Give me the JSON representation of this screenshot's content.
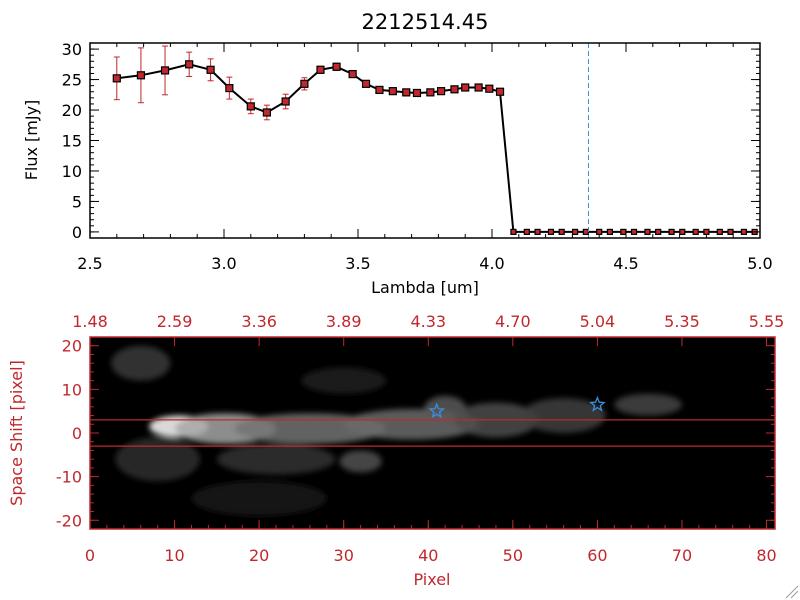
{
  "chart_data": [
    {
      "type": "line",
      "title": "2212514.45",
      "xlabel": "Lambda [um]",
      "ylabel": "Flux [mJy]",
      "xlim": [
        2.5,
        5.0
      ],
      "ylim": [
        -1,
        31
      ],
      "x_ticks": [
        "2.5",
        "3.0",
        "3.5",
        "4.0",
        "4.5",
        "5.0"
      ],
      "y_ticks": [
        "0",
        "5",
        "10",
        "15",
        "20",
        "25",
        "30"
      ],
      "vline_x": 4.36,
      "series": [
        {
          "x": [
            2.6,
            2.69,
            2.78,
            2.87,
            2.95,
            3.02,
            3.1,
            3.16,
            3.23,
            3.3,
            3.36,
            3.42,
            3.48,
            3.53,
            3.58,
            3.63,
            3.68,
            3.72,
            3.77,
            3.81,
            3.86,
            3.9,
            3.95,
            3.99,
            4.03
          ],
          "y": [
            25.2,
            25.7,
            26.5,
            27.5,
            26.6,
            23.6,
            20.6,
            19.6,
            21.4,
            24.3,
            26.6,
            27.1,
            25.9,
            24.3,
            23.3,
            23.1,
            22.9,
            22.8,
            22.9,
            23.1,
            23.4,
            23.7,
            23.7,
            23.5,
            23.0
          ],
          "yerr": [
            3.5,
            4.5,
            4.0,
            2.0,
            1.8,
            1.8,
            1.2,
            1.2,
            1.2,
            1.0,
            0.6,
            0.6,
            0.5,
            0.5,
            0.4,
            0.3,
            0.3,
            0.3,
            0.3,
            0.3,
            0.3,
            0.3,
            0.3,
            0.3,
            0.3
          ]
        },
        {
          "x": [
            4.08,
            4.13,
            4.17,
            4.22,
            4.26,
            4.31,
            4.35,
            4.4,
            4.44,
            4.49,
            4.53,
            4.58,
            4.62,
            4.67,
            4.71,
            4.76,
            4.8,
            4.85,
            4.89,
            4.94,
            4.98
          ],
          "y": [
            0,
            0,
            0,
            0,
            0,
            0,
            0,
            0,
            0,
            0,
            0,
            0,
            0,
            0,
            0,
            0,
            0,
            0,
            0,
            0,
            0
          ]
        }
      ]
    },
    {
      "type": "heatmap",
      "xlabel": "Pixel",
      "ylabel": "Space Shift [pixel]",
      "xlim": [
        0,
        81
      ],
      "ylim": [
        -22,
        22
      ],
      "x_ticks": [
        "0",
        "10",
        "20",
        "30",
        "40",
        "50",
        "60",
        "70",
        "80"
      ],
      "y_ticks": [
        "-20",
        "-10",
        "0",
        "10",
        "20"
      ],
      "top_ticks": [
        "1.48",
        "2.59",
        "3.36",
        "3.89",
        "4.33",
        "4.70",
        "5.04",
        "5.35",
        "5.55"
      ],
      "hlines_y": [
        3,
        -3
      ],
      "stars": [
        {
          "x": 41,
          "y": 5
        },
        {
          "x": 60,
          "y": 6.5
        }
      ],
      "blobs": [
        {
          "x": 10.5,
          "y": 1.5,
          "sx": 3.5,
          "sy": 2.5,
          "a": 1.0
        },
        {
          "x": 16,
          "y": 1,
          "sx": 6,
          "sy": 3.5,
          "a": 0.65
        },
        {
          "x": 26,
          "y": 1,
          "sx": 9,
          "sy": 3.5,
          "a": 0.45
        },
        {
          "x": 38,
          "y": 2,
          "sx": 8,
          "sy": 3.5,
          "a": 0.42
        },
        {
          "x": 42,
          "y": 5.5,
          "sx": 2.5,
          "sy": 3,
          "a": 0.35
        },
        {
          "x": 48,
          "y": 3,
          "sx": 5,
          "sy": 4,
          "a": 0.3
        },
        {
          "x": 56,
          "y": 4,
          "sx": 5,
          "sy": 4,
          "a": 0.25
        },
        {
          "x": 66,
          "y": 6.5,
          "sx": 4,
          "sy": 2.5,
          "a": 0.28
        },
        {
          "x": 32,
          "y": -6.5,
          "sx": 2.5,
          "sy": 2.5,
          "a": 0.32
        },
        {
          "x": 22,
          "y": -6,
          "sx": 7,
          "sy": 3.5,
          "a": 0.2
        },
        {
          "x": 8,
          "y": -6,
          "sx": 5,
          "sy": 5,
          "a": 0.18
        },
        {
          "x": 6,
          "y": 16,
          "sx": 3.5,
          "sy": 4,
          "a": 0.22
        },
        {
          "x": 30,
          "y": 12,
          "sx": 5,
          "sy": 3,
          "a": 0.12
        },
        {
          "x": 20,
          "y": -15,
          "sx": 8,
          "sy": 4,
          "a": 0.1
        }
      ]
    }
  ]
}
